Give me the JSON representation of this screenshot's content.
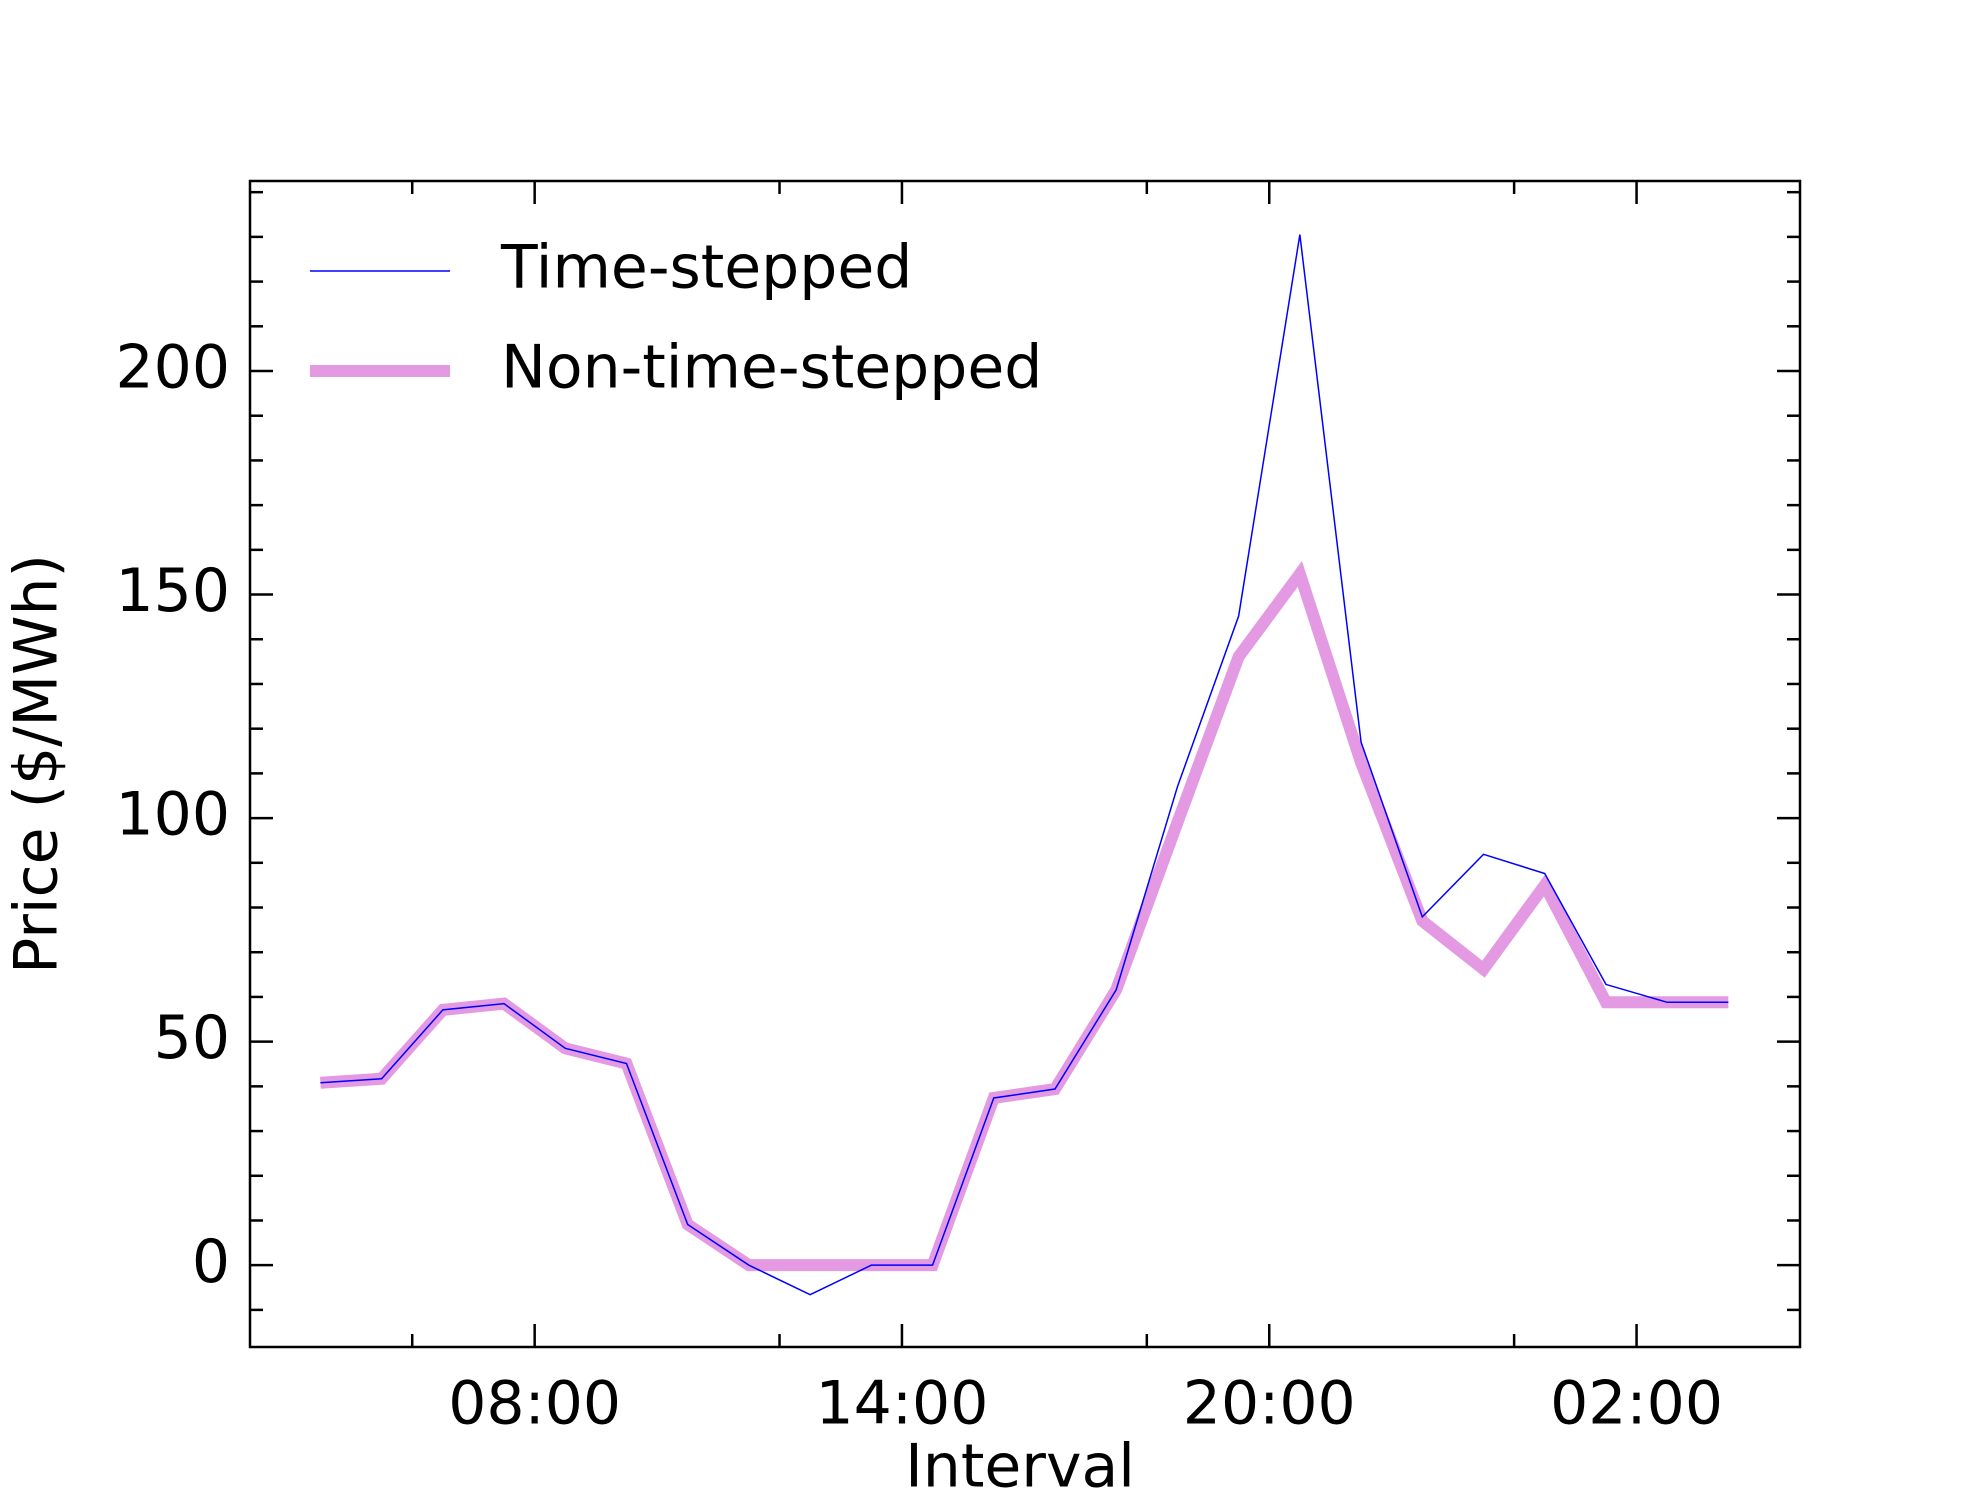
{
  "chart_data": {
    "type": "line",
    "x_label": "Interval",
    "y_label": "Price ($/MWh)",
    "x": [
      4.5,
      5.5,
      6.5,
      7.5,
      8.5,
      9.5,
      10.5,
      11.5,
      12.5,
      13.5,
      14.5,
      15.5,
      16.5,
      17.5,
      18.5,
      19.5,
      20.5,
      21.5,
      22.5,
      23.5,
      24.5,
      25.5,
      26.5,
      27.5
    ],
    "series": [
      {
        "name": "Time-stepped",
        "color": "#0000ff",
        "linewidth": 1.5,
        "values": [
          40.8,
          41.7,
          57.1,
          58.5,
          48.5,
          45.1,
          9.1,
          0,
          -6.6,
          0,
          0,
          37.4,
          39.4,
          61.6,
          107.0,
          145.2,
          230.5,
          117.0,
          77.9,
          91.9,
          87.6,
          62.8,
          58.8,
          58.8
        ]
      },
      {
        "name": "Non-time-stepped",
        "color": "#e39ae3",
        "linewidth": 12,
        "values": [
          40.8,
          41.7,
          57.1,
          58.5,
          48.5,
          45.1,
          9.1,
          0,
          0,
          0,
          0,
          37.4,
          39.4,
          61.6,
          99.0,
          136.1,
          154.6,
          112.4,
          77.0,
          66.2,
          85.0,
          58.8,
          58.8,
          58.8
        ]
      }
    ],
    "xlim": [
      3.35,
      28.67
    ],
    "xticks": [
      {
        "value": 8,
        "label": "08:00"
      },
      {
        "value": 14,
        "label": "14:00"
      },
      {
        "value": 20,
        "label": "20:00"
      },
      {
        "value": 26,
        "label": "02:00"
      }
    ],
    "xminorticks": [
      6,
      12,
      18,
      24
    ],
    "ylim": [
      -18.3,
      242.5
    ],
    "yticks": [
      0,
      50,
      100,
      150,
      200
    ],
    "yminorticks": [
      -10,
      10,
      20,
      30,
      40,
      60,
      70,
      80,
      90,
      110,
      120,
      130,
      140,
      160,
      170,
      180,
      190,
      210,
      220,
      230,
      240
    ],
    "legend": "upper left",
    "grid": false
  }
}
